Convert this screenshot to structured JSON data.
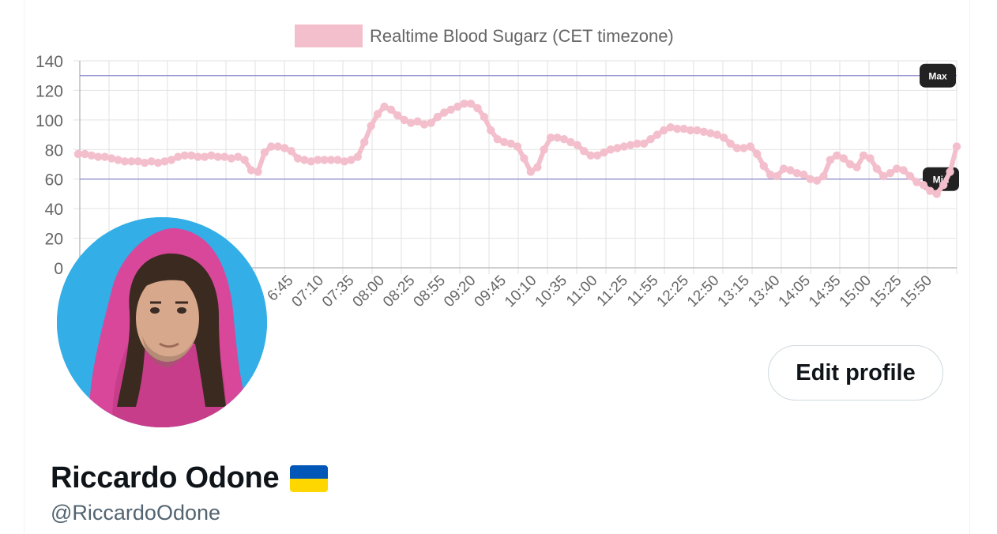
{
  "chart_data": {
    "type": "line",
    "legend": "Realtime Blood Sugarz (CET timezone)",
    "legend_position": "top",
    "series_color": "#f4bfcc",
    "ylim": [
      0,
      140
    ],
    "yticks": [
      "140",
      "120",
      "100",
      "80",
      "60",
      "40",
      "20",
      "0"
    ],
    "y_tick_values": [
      140,
      120,
      100,
      80,
      60,
      40,
      20,
      0
    ],
    "xticks": [
      "6:45",
      "07:10",
      "07:35",
      "08:00",
      "08:25",
      "08:55",
      "09:20",
      "09:45",
      "10:10",
      "10:35",
      "11:00",
      "11:25",
      "11:55",
      "12:25",
      "12:50",
      "13:15",
      "13:40",
      "14:05",
      "14:35",
      "15:00",
      "15:25",
      "15:50"
    ],
    "grid": true,
    "annotations": [
      {
        "label": "Max",
        "value": 130,
        "color": "#8c88c9"
      },
      {
        "label": "Min",
        "value": 60,
        "color": "#8c88c9"
      }
    ],
    "values": [
      77,
      77,
      76,
      75,
      75,
      74,
      73,
      72,
      72,
      72,
      71,
      72,
      71,
      72,
      73,
      75,
      76,
      76,
      75,
      75,
      76,
      75,
      75,
      74,
      75,
      73,
      66,
      65,
      78,
      82,
      82,
      81,
      79,
      74,
      73,
      72,
      73,
      73,
      73,
      73,
      72,
      73,
      75,
      85,
      96,
      104,
      109,
      107,
      103,
      100,
      98,
      99,
      97,
      98,
      102,
      105,
      107,
      109,
      111,
      111,
      108,
      102,
      93,
      87,
      85,
      84,
      82,
      74,
      65,
      68,
      80,
      88,
      88,
      87,
      85,
      83,
      79,
      76,
      76,
      78,
      80,
      81,
      82,
      83,
      84,
      84,
      87,
      90,
      93,
      95,
      94,
      94,
      93,
      93,
      92,
      91,
      90,
      88,
      84,
      81,
      81,
      82,
      77,
      69,
      63,
      62,
      67,
      66,
      64,
      63,
      60,
      59,
      62,
      73,
      76,
      74,
      70,
      68,
      76,
      74,
      67,
      62,
      64,
      67,
      66,
      62,
      58,
      56,
      52,
      50,
      56,
      65,
      82
    ]
  },
  "profile": {
    "display_name": "Riccardo Odone",
    "handle": "@RiccardoOdone",
    "edit_button_label": "Edit profile",
    "flag_emoji_name": "ukraine-flag-icon",
    "flag_colors": [
      "#0057b7",
      "#ffd700"
    ],
    "avatar_background": "#33aee6"
  }
}
